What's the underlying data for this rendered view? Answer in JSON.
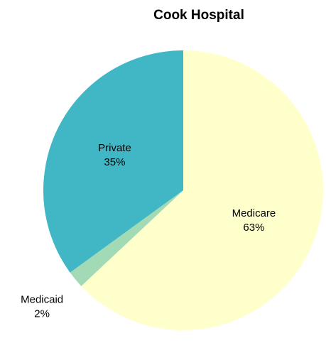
{
  "chart_data": {
    "type": "pie",
    "title": "Cook Hospital",
    "categories": [
      "Medicare",
      "Medicaid",
      "Private"
    ],
    "values": [
      63,
      2,
      35
    ],
    "value_labels": [
      "63%",
      "2%",
      "35%"
    ],
    "colors": [
      "#ffffcc",
      "#a1dab4",
      "#41b6c4"
    ]
  }
}
